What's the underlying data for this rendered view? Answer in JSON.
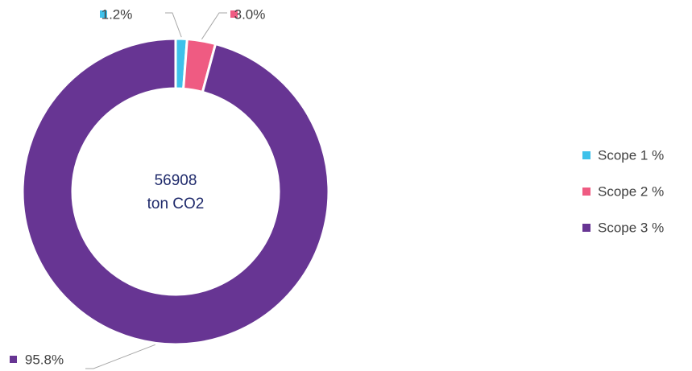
{
  "chart_data": {
    "type": "donut",
    "categories": [
      "Scope 1 %",
      "Scope 2 %",
      "Scope 3 %"
    ],
    "values": [
      1.2,
      3.0,
      95.8
    ],
    "value_labels": [
      "1.2%",
      "3.0%",
      "95.8%"
    ],
    "colors": [
      "#3ec1ea",
      "#ef5b82",
      "#673593"
    ],
    "annotations": [
      "56908",
      "ton CO2"
    ],
    "legend": "right"
  }
}
